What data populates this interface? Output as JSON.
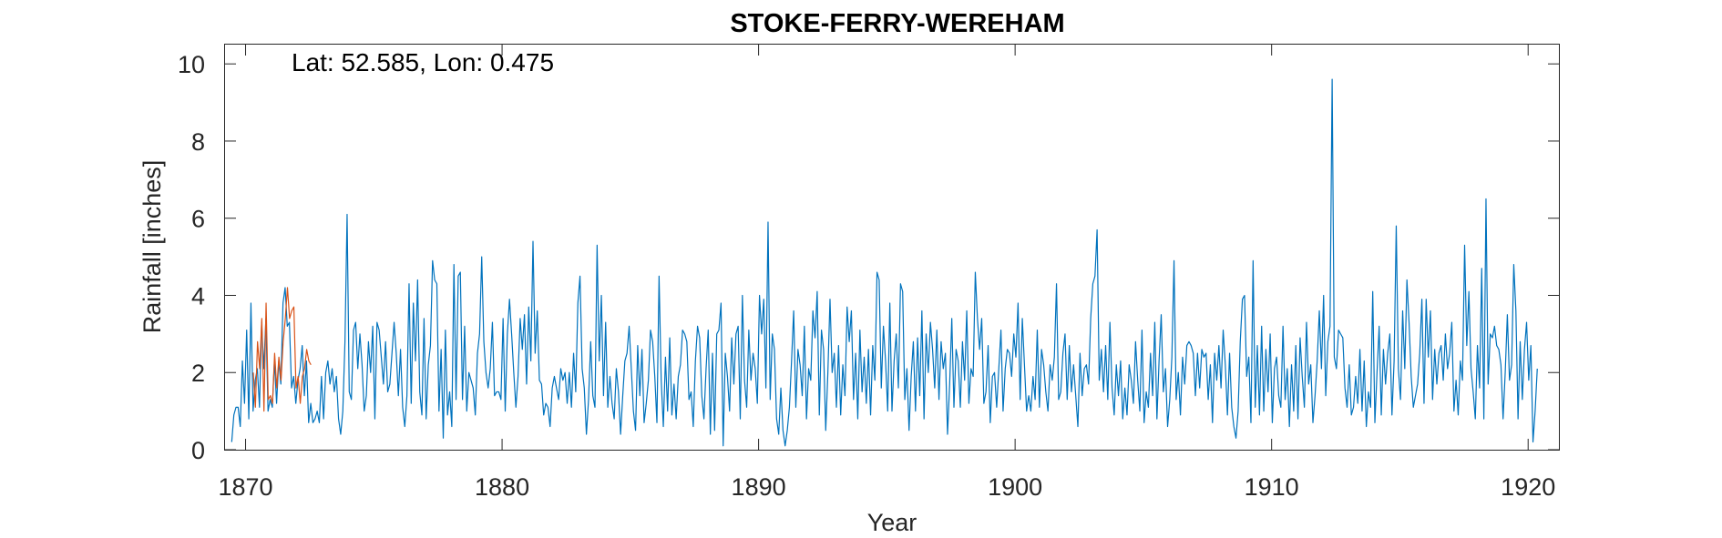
{
  "chart_data": {
    "type": "line",
    "title": "STOKE-FERRY-WEREHAM",
    "annotation": "Lat: 52.585, Lon: 0.475",
    "xlabel": "Year",
    "ylabel": "Rainfall [inches]",
    "xlim": [
      1869.2,
      1921.2
    ],
    "ylim": [
      0,
      10.5
    ],
    "xticks": [
      1870,
      1880,
      1890,
      1900,
      1910,
      1920
    ],
    "yticks": [
      0,
      2,
      4,
      6,
      8,
      10
    ],
    "grid": false,
    "colors": {
      "primary": "#0072BD",
      "secondary": "#D95319"
    },
    "series": [
      {
        "color": "#0072BD",
        "start_year": 1869.46,
        "step_years": 0.0833,
        "values": [
          0.2,
          0.9,
          1.1,
          1.1,
          0.6,
          2.3,
          1.2,
          3.1,
          0.8,
          3.8,
          1.0,
          1.8,
          2.1,
          1.1,
          3.3,
          2.1,
          3.4,
          1.0,
          1.3,
          1.1,
          2.3,
          1.2,
          2.3,
          1.7,
          3.8,
          4.2,
          3.2,
          3.3,
          1.6,
          1.9,
          1.2,
          1.8,
          2.1,
          2.7,
          1.4,
          2.3,
          0.7,
          1.2,
          0.7,
          0.8,
          1.0,
          0.7,
          1.9,
          0.8,
          2.0,
          2.3,
          1.7,
          2.1,
          1.5,
          1.9,
          0.8,
          0.4,
          1.0,
          2.8,
          6.1,
          1.5,
          1.3,
          3.1,
          3.3,
          2.1,
          3.0,
          2.2,
          1.0,
          1.4,
          2.8,
          2.0,
          3.2,
          0.8,
          3.3,
          3.1,
          2.4,
          1.7,
          2.8,
          1.5,
          1.7,
          2.5,
          3.3,
          2.5,
          1.4,
          2.6,
          1.1,
          0.6,
          1.4,
          4.3,
          1.2,
          3.8,
          2.3,
          4.4,
          1.5,
          0.9,
          3.4,
          0.8,
          2.2,
          2.7,
          4.9,
          4.4,
          4.3,
          1.0,
          2.6,
          0.3,
          3.1,
          0.9,
          1.5,
          0.6,
          4.8,
          1.3,
          4.5,
          4.6,
          1.3,
          3.2,
          1.0,
          2.0,
          1.8,
          1.6,
          0.9,
          2.5,
          3.0,
          5.0,
          2.8,
          2.0,
          1.6,
          2.1,
          3.3,
          1.4,
          1.5,
          1.5,
          1.3,
          3.4,
          1.0,
          3.0,
          3.9,
          3.0,
          2.0,
          1.1,
          1.9,
          3.4,
          2.6,
          3.5,
          1.7,
          3.7,
          2.3,
          5.4,
          2.5,
          3.6,
          1.8,
          1.7,
          0.9,
          1.2,
          1.1,
          0.6,
          1.6,
          1.9,
          1.6,
          1.3,
          2.1,
          1.8,
          2.0,
          1.2,
          2.0,
          1.1,
          2.5,
          1.5,
          3.8,
          4.5,
          2.1,
          1.6,
          0.4,
          1.3,
          2.8,
          1.4,
          1.1,
          5.3,
          2.3,
          4.0,
          1.4,
          3.3,
          1.1,
          1.9,
          1.2,
          0.8,
          2.1,
          1.5,
          0.4,
          1.4,
          2.3,
          2.5,
          3.2,
          2.1,
          1.0,
          0.5,
          2.7,
          1.4,
          2.6,
          0.7,
          1.2,
          1.8,
          3.1,
          2.8,
          1.9,
          0.7,
          4.5,
          1.8,
          0.6,
          2.4,
          1.0,
          2.9,
          0.9,
          1.7,
          0.8,
          1.9,
          2.2,
          3.1,
          3.0,
          2.8,
          1.3,
          1.5,
          0.6,
          2.3,
          3.2,
          2.9,
          1.4,
          0.8,
          2.1,
          3.1,
          0.4,
          2.5,
          0.5,
          3.0,
          3.1,
          3.8,
          0.1,
          2.5,
          1.9,
          1.0,
          2.9,
          1.7,
          3.0,
          3.2,
          0.8,
          4.0,
          1.8,
          1.1,
          3.1,
          1.8,
          2.5,
          2.1,
          1.2,
          4.0,
          3.0,
          3.9,
          1.6,
          5.9,
          1.3,
          3.0,
          2.6,
          0.8,
          0.4,
          1.6,
          0.5,
          0.1,
          0.5,
          1.1,
          2.3,
          3.6,
          1.1,
          2.6,
          2.2,
          1.4,
          3.2,
          0.8,
          2.1,
          1.8,
          3.6,
          2.9,
          4.1,
          0.9,
          3.1,
          2.6,
          0.5,
          2.0,
          3.9,
          2.0,
          2.5,
          1.1,
          2.7,
          0.9,
          2.2,
          1.4,
          3.7,
          2.8,
          3.6,
          1.3,
          2.5,
          0.8,
          3.1,
          1.5,
          2.4,
          1.2,
          2.6,
          0.9,
          2.7,
          1.8,
          4.6,
          4.4,
          1.6,
          3.2,
          2.3,
          1.0,
          3.8,
          1.0,
          2.3,
          3.0,
          1.6,
          4.3,
          4.1,
          1.3,
          2.1,
          0.5,
          1.9,
          2.8,
          1.0,
          2.9,
          1.4,
          3.6,
          0.8,
          3.0,
          2.0,
          3.3,
          2.6,
          1.6,
          3.1,
          1.3,
          2.8,
          2.1,
          2.5,
          0.4,
          1.7,
          3.4,
          1.1,
          2.6,
          2.3,
          1.1,
          2.8,
          1.8,
          3.6,
          1.2,
          2.1,
          1.9,
          4.6,
          3.4,
          2.6,
          3.4,
          1.2,
          1.5,
          2.7,
          0.7,
          1.9,
          2.0,
          1.1,
          2.1,
          3.1,
          1.0,
          2.1,
          2.6,
          2.5,
          1.9,
          3.0,
          2.4,
          3.8,
          1.3,
          3.4,
          2.2,
          1.0,
          1.4,
          1.0,
          1.9,
          1.3,
          3.1,
          1.1,
          2.6,
          2.2,
          1.5,
          1.0,
          2.2,
          1.8,
          2.4,
          4.3,
          1.3,
          1.5,
          2.5,
          3.0,
          1.3,
          2.7,
          1.5,
          2.2,
          1.4,
          0.6,
          2.5,
          1.4,
          2.1,
          2.2,
          1.7,
          3.4,
          4.3,
          4.5,
          5.7,
          1.8,
          2.6,
          1.5,
          2.7,
          1.3,
          3.3,
          1.6,
          0.9,
          2.2,
          1.4,
          2.3,
          0.8,
          1.6,
          0.9,
          2.2,
          1.8,
          1.2,
          2.8,
          1.8,
          1.0,
          3.1,
          0.7,
          1.5,
          1.1,
          2.5,
          1.4,
          3.3,
          0.8,
          2.3,
          3.5,
          1.5,
          2.1,
          0.6,
          1.3,
          2.4,
          4.9,
          1.3,
          2.0,
          0.9,
          2.4,
          1.7,
          2.7,
          2.8,
          2.7,
          2.5,
          1.4,
          2.5,
          1.6,
          2.6,
          2.4,
          2.5,
          1.3,
          2.2,
          0.7,
          2.5,
          1.8,
          2.7,
          1.6,
          3.1,
          2.2,
          0.9,
          2.5,
          1.1,
          0.6,
          0.3,
          1.0,
          2.8,
          3.9,
          4.0,
          1.9,
          2.4,
          0.7,
          4.9,
          1.1,
          2.7,
          0.9,
          3.2,
          1.0,
          2.6,
          1.5,
          3.0,
          0.7,
          2.1,
          2.4,
          1.4,
          1.1,
          3.2,
          1.3,
          2.1,
          0.6,
          2.2,
          1.0,
          2.7,
          0.8,
          2.9,
          1.9,
          1.1,
          3.3,
          1.7,
          2.2,
          0.7,
          1.4,
          2.3,
          3.6,
          2.1,
          4.0,
          1.4,
          2.8,
          3.2,
          9.6,
          2.4,
          2.1,
          3.1,
          3.0,
          2.9,
          1.6,
          1.1,
          2.2,
          0.9,
          1.1,
          1.9,
          1.2,
          2.6,
          1.0,
          2.3,
          0.6,
          1.5,
          1.1,
          4.1,
          0.7,
          2.0,
          3.2,
          0.9,
          2.6,
          1.7,
          2.5,
          3.0,
          0.9,
          2.3,
          5.8,
          2.1,
          1.3,
          3.6,
          2.1,
          4.4,
          3.3,
          1.9,
          1.1,
          1.4,
          1.7,
          2.5,
          3.9,
          1.2,
          3.9,
          2.4,
          3.6,
          1.3,
          2.6,
          1.7,
          2.5,
          2.7,
          1.8,
          3.0,
          2.1,
          2.5,
          3.3,
          1.0,
          1.8,
          0.9,
          2.3,
          1.8,
          5.3,
          2.7,
          4.1,
          2.1,
          1.5,
          0.8,
          2.7,
          1.6,
          4.7,
          0.8,
          6.5,
          1.7,
          3.0,
          2.9,
          3.2,
          2.7,
          2.6,
          2.2,
          0.8,
          2.0,
          3.5,
          1.8,
          2.2,
          4.8,
          3.6,
          0.8,
          2.8,
          1.3,
          2.6,
          3.3,
          1.8,
          2.7,
          0.2,
          1.0,
          2.1
        ]
      },
      {
        "color": "#D95319",
        "start_year": 1870.3,
        "step_years": 0.0833,
        "values": [
          2.0,
          1.1,
          2.8,
          2.1,
          3.4,
          1.0,
          3.8,
          1.3,
          1.4,
          1.2,
          2.5,
          1.6,
          2.4,
          1.8,
          2.8,
          3.4,
          4.2,
          3.4,
          3.6,
          3.7,
          1.6,
          1.9,
          1.2,
          1.9,
          2.1,
          2.6,
          2.3,
          2.2
        ]
      }
    ]
  }
}
